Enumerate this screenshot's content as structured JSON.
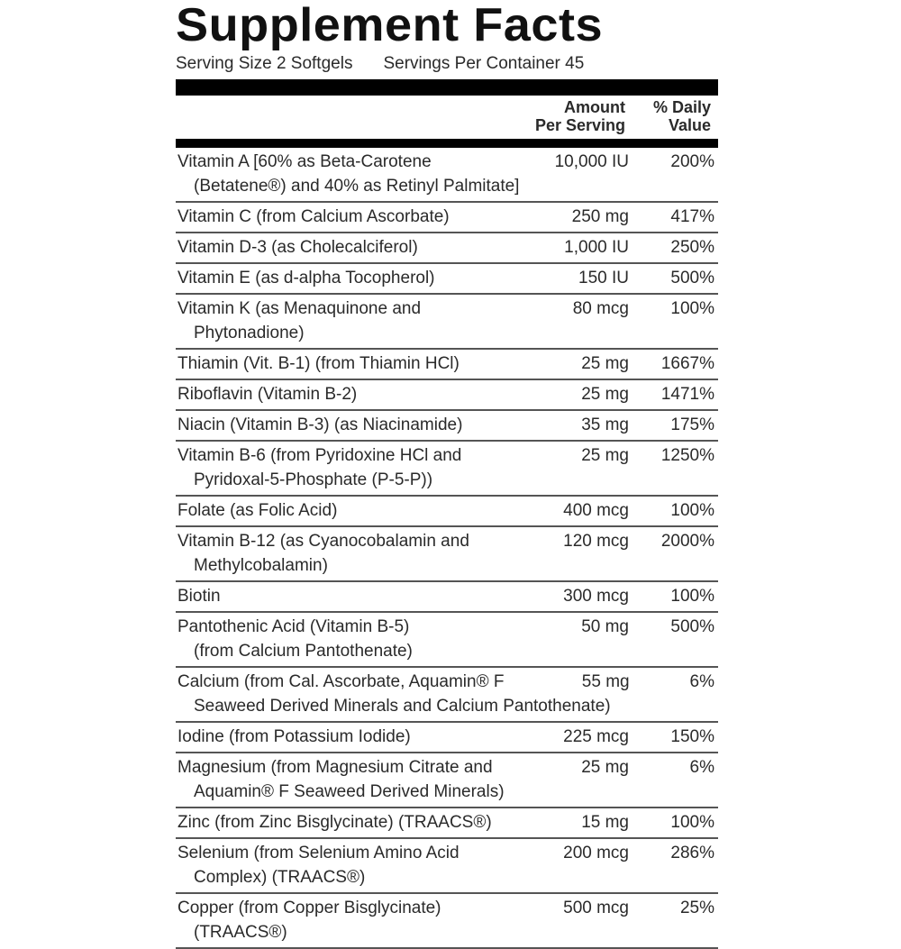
{
  "title": "Supplement Facts",
  "serving_size": "Serving Size 2 Softgels",
  "servings_per_container": "Servings Per Container 45",
  "header": {
    "amount_line1": "Amount",
    "amount_line2": "Per Serving",
    "dv_line1": "% Daily",
    "dv_line2": "Value"
  },
  "rows": [
    {
      "name": "Vitamin A [60% as Beta-Carotene",
      "cont": "(Betatene®) and 40% as Retinyl Palmitate]",
      "amount": "10,000 IU",
      "dv": "200%"
    },
    {
      "name": "Vitamin C (from Calcium Ascorbate)",
      "amount": "250 mg",
      "dv": "417%"
    },
    {
      "name": "Vitamin D-3 (as Cholecalciferol)",
      "amount": "1,000 IU",
      "dv": "250%"
    },
    {
      "name": "Vitamin E (as d-alpha Tocopherol)",
      "amount": "150 IU",
      "dv": "500%"
    },
    {
      "name": "Vitamin K (as Menaquinone and",
      "cont": "Phytonadione)",
      "amount": "80 mcg",
      "dv": "100%"
    },
    {
      "name": "Thiamin (Vit. B-1) (from Thiamin HCl)",
      "amount": "25 mg",
      "dv": "1667%"
    },
    {
      "name": "Riboflavin (Vitamin B-2)",
      "amount": "25 mg",
      "dv": "1471%"
    },
    {
      "name": "Niacin (Vitamin B-3) (as Niacinamide)",
      "amount": "35 mg",
      "dv": "175%"
    },
    {
      "name": "Vitamin B-6 (from Pyridoxine HCl and",
      "cont": "Pyridoxal-5-Phosphate (P-5-P))",
      "amount": "25 mg",
      "dv": "1250%"
    },
    {
      "name": "Folate (as Folic Acid)",
      "amount": "400 mcg",
      "dv": "100%"
    },
    {
      "name": "Vitamin B-12 (as Cyanocobalamin and",
      "cont": "Methylcobalamin)",
      "amount": "120 mcg",
      "dv": "2000%"
    },
    {
      "name": "Biotin",
      "amount": "300 mcg",
      "dv": "100%"
    },
    {
      "name": "Pantothenic Acid (Vitamin B-5)",
      "cont": "(from Calcium Pantothenate)",
      "amount": "50 mg",
      "dv": "500%"
    },
    {
      "name": "Calcium (from Cal. Ascorbate, Aquamin® F",
      "cont": "Seaweed Derived Minerals and Calcium Pantothenate)",
      "amount": "55 mg",
      "dv": "6%"
    },
    {
      "name": "Iodine (from Potassium Iodide)",
      "amount": "225 mcg",
      "dv": "150%"
    },
    {
      "name": "Magnesium (from Magnesium Citrate and",
      "cont": "Aquamin® F Seaweed Derived Minerals)",
      "amount": "25 mg",
      "dv": "6%"
    },
    {
      "name": "Zinc (from Zinc Bisglycinate) (TRAACS®)",
      "amount": "15 mg",
      "dv": "100%"
    },
    {
      "name": "Selenium (from Selenium Amino Acid",
      "cont": "Complex) (TRAACS®)",
      "amount": "200 mcg",
      "dv": "286%"
    },
    {
      "name": "Copper (from Copper Bisglycinate)",
      "cont": "(TRAACS®)",
      "amount": "500 mcg",
      "dv": "25%"
    }
  ]
}
